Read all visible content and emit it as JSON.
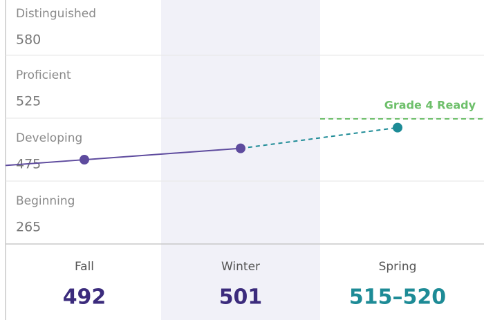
{
  "chart_data": {
    "type": "band-line",
    "bands": [
      {
        "name": "Distinguished",
        "score": 580
      },
      {
        "name": "Proficient",
        "score": 525
      },
      {
        "name": "Developing",
        "score": 475
      },
      {
        "name": "Beginning",
        "score": 265
      }
    ],
    "grade_ready": {
      "label": "Grade 4 Ready",
      "score": 525,
      "color": "#6dbf6a"
    },
    "seasons": [
      {
        "name": "Fall",
        "score": 492
      },
      {
        "name": "Winter",
        "score": 501
      },
      {
        "name": "Spring",
        "range": [
          515,
          520
        ],
        "range_label": "515–520"
      }
    ],
    "actual_color": "#5e4b9e",
    "projected_color": "#1d8b96"
  }
}
